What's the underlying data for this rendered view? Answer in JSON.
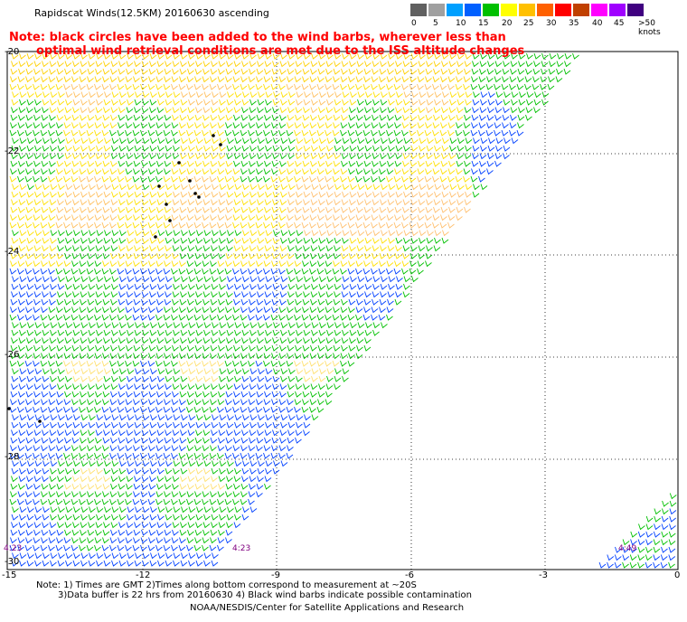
{
  "title": "Rapidscat Winds(12.5KM) 20160630 ascending",
  "note_line1": "Note: black circles have been added to the wind barbs, wherever less than",
  "note_line2": "optimal wind retrieval conditions are met due to the ISS altitude changes",
  "legend": {
    "labels": [
      "0",
      "5",
      "10",
      "15",
      "20",
      "25",
      "30",
      "35",
      "40",
      "45",
      ">50 knots"
    ],
    "colors": [
      "#606060",
      "#a0a0a0",
      "#00a0ff",
      "#0060ff",
      "#00c000",
      "#ffff00",
      "#ffc000",
      "#ff6000",
      "#ff0000",
      "#c04000",
      "#ff00ff",
      "#a000ff",
      "#400080"
    ]
  },
  "lat_labels": [
    "-20",
    "-22",
    "-24",
    "-26",
    "-28",
    "-30"
  ],
  "lon_labels": [
    "-15",
    "-12",
    "-9",
    "-6",
    "-3",
    "0"
  ],
  "times": [
    "4:23",
    "4:23",
    "4:49"
  ],
  "footer_line1": "Note: 1) Times are GMT 2)Times along bottom correspond to measurement at ~20S",
  "footer_line2": "3)Data buffer is 22 hrs from 20160630 4) Black wind barbs indicate possible contamination",
  "footer_line3": "NOAA/NESDIS/Center for Satellite Applications and Research"
}
